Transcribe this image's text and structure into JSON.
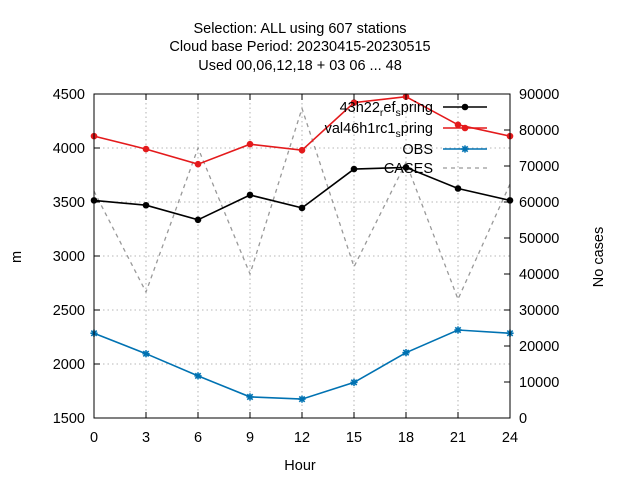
{
  "chart_data": {
    "type": "line",
    "title_lines": [
      "Selection: ALL using   607 stations",
      "Cloud base   Period: 20230415-20230515",
      "Used  00,06,12,18  + 03 06 ... 48"
    ],
    "xlabel": "Hour",
    "ylabel": "m",
    "y2label": "No cases",
    "xlim": [
      0,
      24
    ],
    "ylim": [
      1500,
      4500
    ],
    "y2lim": [
      0,
      90000
    ],
    "xticks": [
      "0",
      "3",
      "6",
      "9",
      "12",
      "15",
      "18",
      "21",
      "24"
    ],
    "yticks": [
      "1500",
      "2000",
      "2500",
      "3000",
      "3500",
      "4000",
      "4500"
    ],
    "y2ticks": [
      "0",
      "10000",
      "20000",
      "30000",
      "40000",
      "50000",
      "60000",
      "70000",
      "80000",
      "90000"
    ],
    "grid": true,
    "legend_position": "top-right",
    "x": [
      0,
      3,
      6,
      9,
      12,
      15,
      18,
      21,
      24
    ],
    "series": [
      {
        "name": "43h22_ref_spring",
        "legend_main": "43h22",
        "legend_sub1": "r",
        "legend_mid": "ef",
        "legend_sub2": "s",
        "legend_end": "pring",
        "axis": "y1",
        "color": "#000000",
        "marker": "circle",
        "values": [
          3515,
          3470,
          3335,
          3565,
          3445,
          3805,
          3820,
          3625,
          3515
        ]
      },
      {
        "name": "val46h1rc1_spring",
        "legend_main": "val46h1rc1",
        "legend_sub1": "s",
        "legend_end": "pring",
        "axis": "y1",
        "color": "#e41a1c",
        "marker": "circle",
        "values": [
          4110,
          3990,
          3850,
          4035,
          3980,
          4420,
          4475,
          4215,
          4110
        ]
      },
      {
        "name": "OBS",
        "legend_main": "OBS",
        "axis": "y1",
        "color": "#0072b2",
        "marker": "star",
        "values": [
          2285,
          2095,
          1890,
          1695,
          1675,
          1830,
          2105,
          2315,
          2285
        ]
      },
      {
        "name": "CASES",
        "legend_main": "CASES",
        "axis": "y2",
        "color": "#999999",
        "dashed": true,
        "values": [
          63000,
          35000,
          75000,
          40000,
          86000,
          42000,
          71000,
          33000,
          65000
        ]
      }
    ]
  }
}
